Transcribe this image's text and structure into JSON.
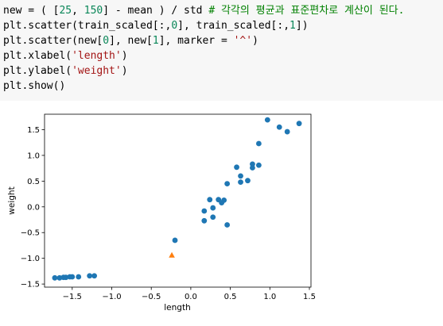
{
  "code_cell": {
    "lines": [
      [
        {
          "t": "new = ( ["
        },
        {
          "t": "25",
          "c": "num"
        },
        {
          "t": ", "
        },
        {
          "t": "150",
          "c": "num"
        },
        {
          "t": "] - mean ) / std "
        },
        {
          "t": "# 각각의 평균과 표준편차로 계산이 된다.",
          "c": "com"
        }
      ],
      [
        {
          "t": "plt.scatter(train_scaled[:,"
        },
        {
          "t": "0",
          "c": "num"
        },
        {
          "t": "], train_scaled[:,"
        },
        {
          "t": "1",
          "c": "num"
        },
        {
          "t": "])"
        }
      ],
      [
        {
          "t": "plt.scatter(new["
        },
        {
          "t": "0",
          "c": "num"
        },
        {
          "t": "], new["
        },
        {
          "t": "1",
          "c": "num"
        },
        {
          "t": "], marker = "
        },
        {
          "t": "'^'",
          "c": "str"
        },
        {
          "t": ")"
        }
      ],
      [
        {
          "t": "plt.xlabel("
        },
        {
          "t": "'length'",
          "c": "str"
        },
        {
          "t": ")"
        }
      ],
      [
        {
          "t": "plt.ylabel("
        },
        {
          "t": "'weight'",
          "c": "str"
        },
        {
          "t": ")"
        }
      ],
      [
        {
          "t": "plt.show()"
        }
      ]
    ]
  },
  "chart_data": {
    "type": "scatter",
    "xlabel": "length",
    "ylabel": "weight",
    "xlim": [
      -1.85,
      1.52
    ],
    "ylim": [
      -1.56,
      1.8
    ],
    "xticks": [
      -1.5,
      -1.0,
      -0.5,
      0.0,
      0.5,
      1.0,
      1.5
    ],
    "xtick_labels": [
      "−1.5",
      "−1.0",
      "−0.5",
      "0.0",
      "0.5",
      "1.0",
      "1.5"
    ],
    "yticks": [
      -1.5,
      -1.0,
      -0.5,
      0.0,
      0.5,
      1.0,
      1.5
    ],
    "ytick_labels": [
      "−1.5",
      "−1.0",
      "−0.5",
      "0.0",
      "0.5",
      "1.0",
      "1.5"
    ],
    "grid": false,
    "series": [
      {
        "marker": "circle",
        "color": "#1f77b4",
        "points": [
          [
            -1.72,
            -1.38
          ],
          [
            -1.66,
            -1.38
          ],
          [
            -1.61,
            -1.37
          ],
          [
            -1.58,
            -1.37
          ],
          [
            -1.53,
            -1.36
          ],
          [
            -1.5,
            -1.36
          ],
          [
            -1.42,
            -1.36
          ],
          [
            -1.28,
            -1.34
          ],
          [
            -1.22,
            -1.34
          ],
          [
            -0.2,
            -0.65
          ],
          [
            0.17,
            -0.27
          ],
          [
            0.17,
            -0.08
          ],
          [
            0.24,
            0.14
          ],
          [
            0.28,
            -0.02
          ],
          [
            0.28,
            -0.2
          ],
          [
            0.35,
            0.14
          ],
          [
            0.39,
            0.08
          ],
          [
            0.42,
            0.13
          ],
          [
            0.46,
            -0.35
          ],
          [
            0.46,
            0.45
          ],
          [
            0.58,
            0.77
          ],
          [
            0.63,
            0.48
          ],
          [
            0.63,
            0.6
          ],
          [
            0.72,
            0.51
          ],
          [
            0.78,
            0.76
          ],
          [
            0.78,
            0.83
          ],
          [
            0.86,
            0.81
          ],
          [
            0.86,
            1.23
          ],
          [
            0.97,
            1.69
          ],
          [
            1.12,
            1.55
          ],
          [
            1.22,
            1.46
          ],
          [
            1.37,
            1.62
          ]
        ]
      },
      {
        "marker": "triangle",
        "color": "#ff7f0e",
        "points": [
          [
            -0.24,
            -0.94
          ]
        ]
      }
    ]
  }
}
